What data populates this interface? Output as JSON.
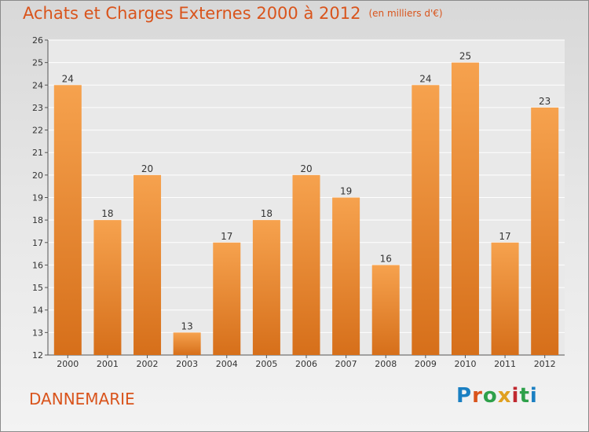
{
  "header": {
    "title": "Achats et Charges Externes 2000 à 2012",
    "unit": "(en milliers d'€)"
  },
  "footer": {
    "city": "DANNEMARIE",
    "logo_text": "Proxiti",
    "logo_colors": [
      "#1a7fc2",
      "#d9541c",
      "#2ea04a",
      "#e0a020",
      "#c0282f",
      "#2ea04a",
      "#1a7fc2"
    ]
  },
  "colors": {
    "accent": "#d9541c",
    "bar_top": "#f6a24e",
    "bar_bottom": "#d66f1a"
  },
  "chart_data": {
    "type": "bar",
    "categories": [
      "2000",
      "2001",
      "2002",
      "2003",
      "2004",
      "2005",
      "2006",
      "2007",
      "2008",
      "2009",
      "2010",
      "2011",
      "2012"
    ],
    "values": [
      24,
      18,
      20,
      13,
      17,
      18,
      20,
      19,
      16,
      24,
      25,
      17,
      23
    ],
    "yticks": [
      12,
      13,
      14,
      15,
      16,
      17,
      18,
      19,
      20,
      21,
      22,
      23,
      24,
      25,
      26
    ],
    "ylim": [
      12,
      26
    ],
    "grid": true,
    "data_labels": true
  }
}
